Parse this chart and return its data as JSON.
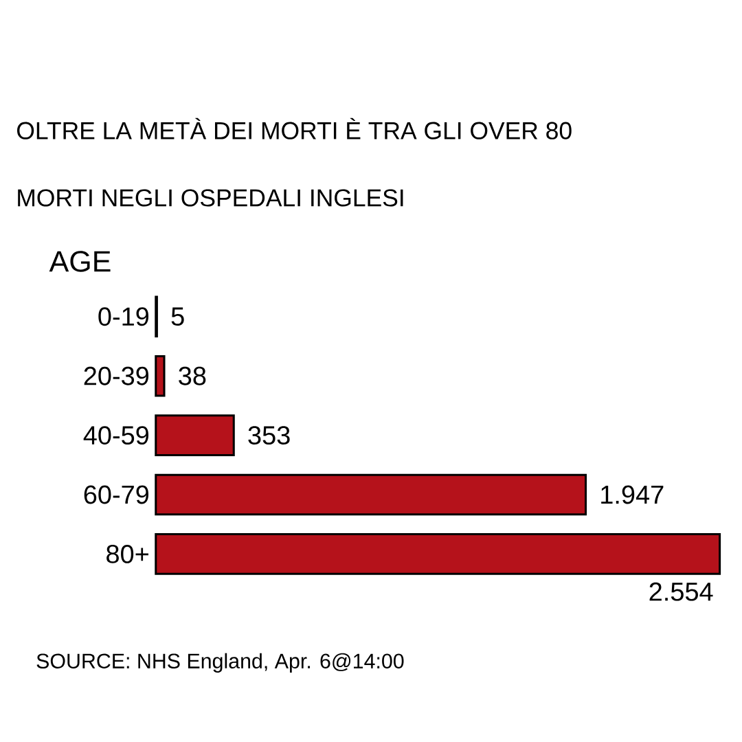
{
  "chart_data": {
    "type": "bar",
    "orientation": "horizontal",
    "title": "OLTRE LA METÀ DEI MORTI È TRA GLI OVER 80",
    "subtitle": "MORTI NEGLI OSPEDALI INGLESI",
    "ylabel": "AGE",
    "categories": [
      "0-19",
      "20-39",
      "40-59",
      "60-79",
      "80+"
    ],
    "values": [
      5,
      38,
      353,
      1947,
      2554
    ],
    "value_labels": [
      "5",
      "38",
      "353",
      "1.947",
      "2.554"
    ],
    "color": "#b5121b",
    "annotations": [
      "SOURCE: NHS England, Apr. 6@14:00"
    ]
  }
}
